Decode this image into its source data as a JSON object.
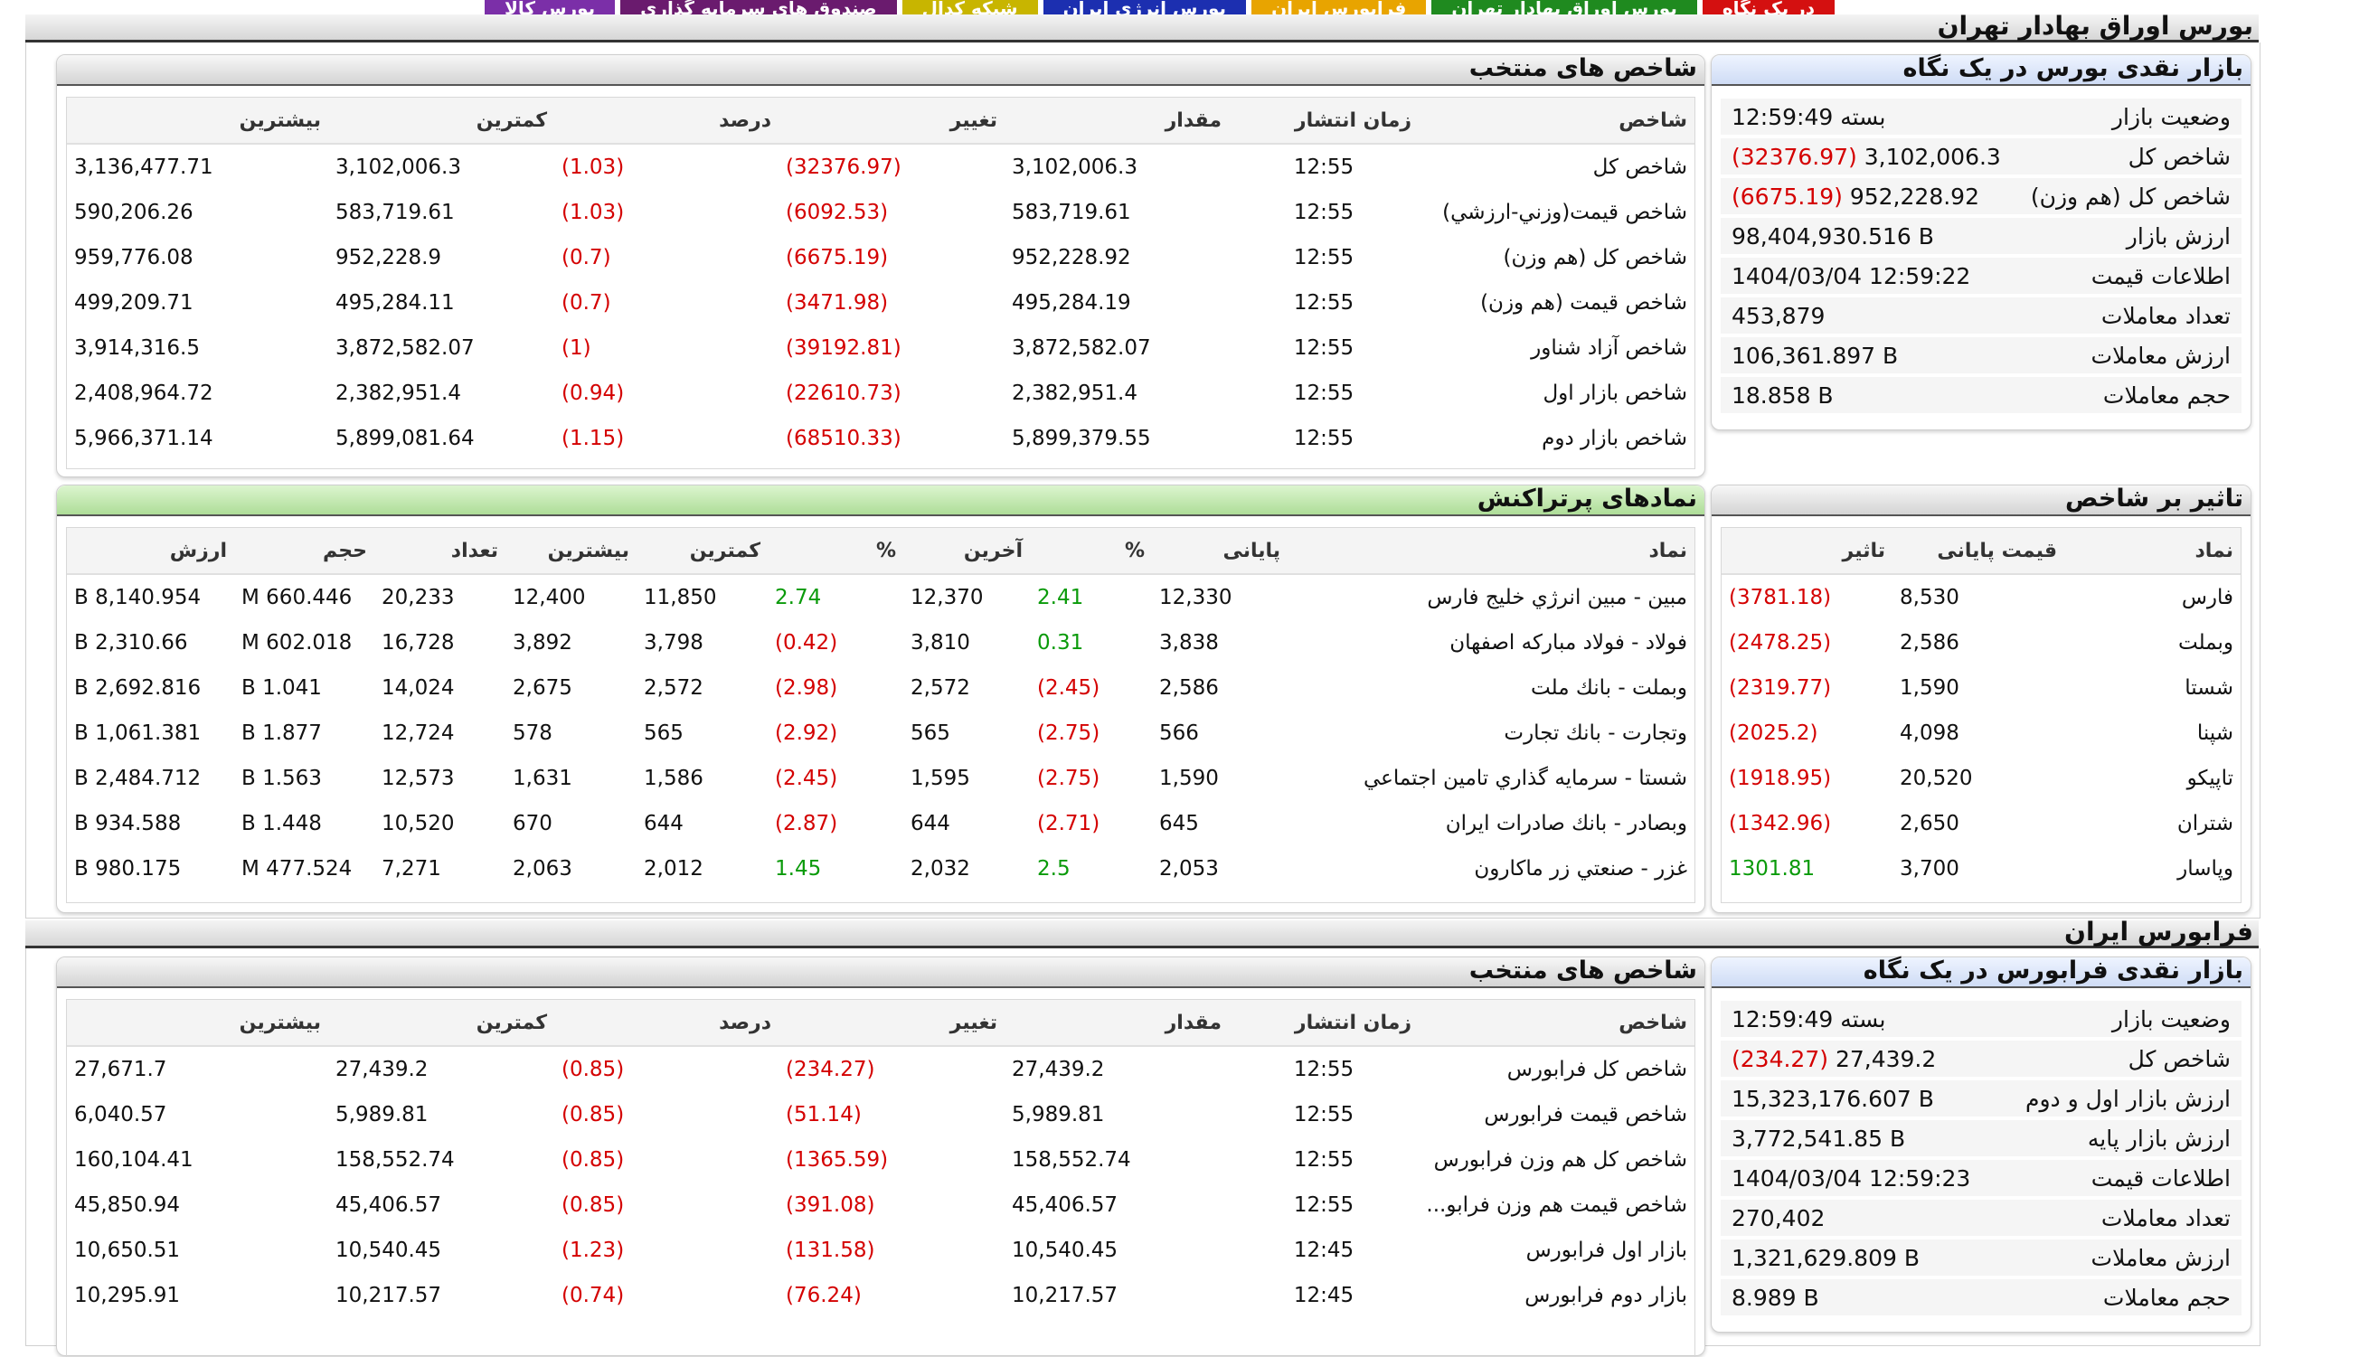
{
  "tabs": [
    {
      "label": "بورس کالا",
      "color": "#7b2fa8"
    },
    {
      "label": "صندوق های سرمایه گذاری",
      "color": "#6a1b6e"
    },
    {
      "label": "شبکه کدال",
      "color": "#c8b500"
    },
    {
      "label": "بورس انرژی ایران",
      "color": "#1c2fb0"
    },
    {
      "label": "فرابورس ایران",
      "color": "#e8a400"
    },
    {
      "label": "بورس اوراق بهادار تهران",
      "color": "#1f8a1f"
    },
    {
      "label": "در یک نگاه",
      "color": "#d41010"
    }
  ],
  "tse": {
    "section_title": "بورس اوراق بهادار تهران",
    "glance": {
      "title": "بازار نقدی بورس در یک نگاه",
      "rows": [
        {
          "label": "وضعیت بازار",
          "value": "بسته 12:59:49"
        },
        {
          "label": "شاخص کل",
          "value": "3,102,006.3",
          "change": "(32376.97)"
        },
        {
          "label": "شاخص کل (هم وزن)",
          "value": "952,228.92",
          "change": "(6675.19)"
        },
        {
          "label": "ارزش بازار",
          "value": "98,404,930.516 B"
        },
        {
          "label": "اطلاعات قیمت",
          "value": "1404/03/04 12:59:22"
        },
        {
          "label": "تعداد معاملات",
          "value": "453,879"
        },
        {
          "label": "ارزش معاملات",
          "value": "106,361.897 B"
        },
        {
          "label": "حجم معاملات",
          "value": "18.858 B"
        }
      ]
    },
    "indices": {
      "title": "شاخص های منتخب",
      "headers": [
        "شاخص",
        "زمان انتشار",
        "مقدار",
        "تغییر",
        "درصد",
        "کمترین",
        "بیشترین"
      ],
      "rows": [
        [
          "شاخص کل",
          "12:55",
          "3,102,006.3",
          "(32376.97)",
          "(1.03)",
          "3,102,006.3",
          "3,136,477.71"
        ],
        [
          "شاخص قیمت(وزني-ارزشي)",
          "12:55",
          "583,719.61",
          "(6092.53)",
          "(1.03)",
          "583,719.61",
          "590,206.26"
        ],
        [
          "شاخص كل (هم وزن)",
          "12:55",
          "952,228.92",
          "(6675.19)",
          "(0.7)",
          "952,228.9",
          "959,776.08"
        ],
        [
          "شاخص قیمت (هم وزن)",
          "12:55",
          "495,284.19",
          "(3471.98)",
          "(0.7)",
          "495,284.11",
          "499,209.71"
        ],
        [
          "شاخص آزاد شناور",
          "12:55",
          "3,872,582.07",
          "(39192.81)",
          "(1)",
          "3,872,582.07",
          "3,914,316.5"
        ],
        [
          "شاخص بازار اول",
          "12:55",
          "2,382,951.4",
          "(22610.73)",
          "(0.94)",
          "2,382,951.4",
          "2,408,964.72"
        ],
        [
          "شاخص بازار دوم",
          "12:55",
          "5,899,379.55",
          "(68510.33)",
          "(1.15)",
          "5,899,081.64",
          "5,966,371.14"
        ]
      ]
    },
    "impact": {
      "title": "تاثیر بر شاخص",
      "headers": [
        "نماد",
        "قیمت پایانی",
        "تاثیر"
      ],
      "rows": [
        [
          "فارس",
          "8,530",
          "(3781.18)"
        ],
        [
          "وبملت",
          "2,586",
          "(2478.25)"
        ],
        [
          "شستا",
          "1,590",
          "(2319.77)"
        ],
        [
          "شپنا",
          "4,098",
          "(2025.2)"
        ],
        [
          "تاپیکو",
          "20,520",
          "(1918.95)"
        ],
        [
          "شتران",
          "2,650",
          "(1342.96)"
        ],
        [
          "وپاسار",
          "3,700",
          "1301.81"
        ]
      ]
    },
    "active": {
      "title": "نمادهای پرتراکنش",
      "headers": [
        "نماد",
        "پایانی",
        "%",
        "آخرین",
        "%",
        "کمترین",
        "بیشترین",
        "تعداد",
        "حجم",
        "ارزش"
      ],
      "rows": [
        [
          "مبین - مبين انرژي خليج فارس",
          "12,330",
          "2.41",
          "12,370",
          "2.74",
          "11,850",
          "12,400",
          "20,233",
          "660.446 M",
          "8,140.954 B"
        ],
        [
          "فولاد - فولاد مباركه اصفهان",
          "3,838",
          "0.31",
          "3,810",
          "(0.42)",
          "3,798",
          "3,892",
          "16,728",
          "602.018 M",
          "2,310.66 B"
        ],
        [
          "وبملت - بانك ملت",
          "2,586",
          "(2.45)",
          "2,572",
          "(2.98)",
          "2,572",
          "2,675",
          "14,024",
          "1.041 B",
          "2,692.816 B"
        ],
        [
          "وتجارت - بانك تجارت",
          "566",
          "(2.75)",
          "565",
          "(2.92)",
          "565",
          "578",
          "12,724",
          "1.877 B",
          "1,061.381 B"
        ],
        [
          "شستا - سرمايه گذاري تامين اجتماعي",
          "1,590",
          "(2.75)",
          "1,595",
          "(2.45)",
          "1,586",
          "1,631",
          "12,573",
          "1.563 B",
          "2,484.712 B"
        ],
        [
          "وبصادر - بانك صادرات ايران",
          "645",
          "(2.71)",
          "644",
          "(2.87)",
          "644",
          "670",
          "10,520",
          "1.448 B",
          "934.588 B"
        ],
        [
          "غزر - صنعتي زر ماكارون",
          "2,053",
          "2.5",
          "2,032",
          "1.45",
          "2,012",
          "2,063",
          "7,271",
          "477.524 M",
          "980.175 B"
        ]
      ]
    }
  },
  "ifb": {
    "section_title": "فرابورس ایران",
    "glance": {
      "title": "بازار نقدی فرابورس در یک نگاه",
      "rows": [
        {
          "label": "وضعیت بازار",
          "value": "بسته 12:59:49"
        },
        {
          "label": "شاخص کل",
          "value": "27,439.2",
          "change": "(234.27)"
        },
        {
          "label": "ارزش بازار اول و دوم",
          "value": "15,323,176.607 B"
        },
        {
          "label": "ارزش بازار پایه",
          "value": "3,772,541.85 B"
        },
        {
          "label": "اطلاعات قیمت",
          "value": "1404/03/04 12:59:23"
        },
        {
          "label": "تعداد معاملات",
          "value": "270,402"
        },
        {
          "label": "ارزش معاملات",
          "value": "1,321,629.809 B"
        },
        {
          "label": "حجم معاملات",
          "value": "8.989 B"
        }
      ]
    },
    "indices": {
      "title": "شاخص های منتخب",
      "headers": [
        "شاخص",
        "زمان انتشار",
        "مقدار",
        "تغییر",
        "درصد",
        "کمترین",
        "بیشترین"
      ],
      "rows": [
        [
          "شاخص كل فرابورس",
          "12:55",
          "27,439.2",
          "(234.27)",
          "(0.85)",
          "27,439.2",
          "27,671.7"
        ],
        [
          "شاخص قيمت فرابورس",
          "12:55",
          "5,989.81",
          "(51.14)",
          "(0.85)",
          "5,989.81",
          "6,040.57"
        ],
        [
          "شاخص كل هم وزن فرابورس",
          "12:55",
          "158,552.74",
          "(1365.59)",
          "(0.85)",
          "158,552.74",
          "160,104.41"
        ],
        [
          "شاخص قيمت هم وزن فرابو...",
          "12:55",
          "45,406.57",
          "(391.08)",
          "(0.85)",
          "45,406.57",
          "45,850.94"
        ],
        [
          "بازار اول فرابورس",
          "12:45",
          "10,540.45",
          "(131.58)",
          "(1.23)",
          "10,540.45",
          "10,650.51"
        ],
        [
          "بازار دوم فرابورس",
          "12:45",
          "10,217.57",
          "(76.24)",
          "(0.74)",
          "10,217.57",
          "10,295.91"
        ]
      ]
    }
  }
}
